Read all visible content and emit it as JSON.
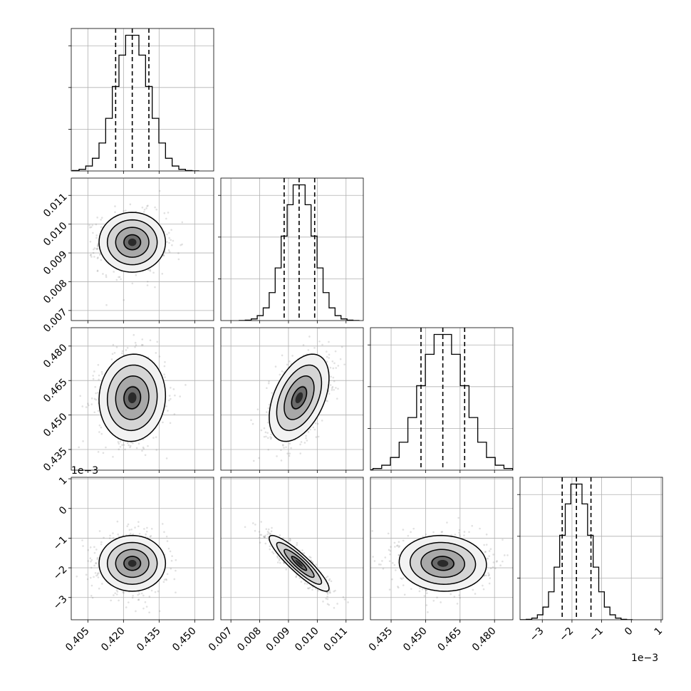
{
  "chart_data": {
    "type": "corner",
    "offset_text": "1e−3",
    "parameters": [
      {
        "range": [
          0.398,
          0.458
        ],
        "ticks": [
          0.405,
          0.42,
          0.435,
          0.45
        ],
        "tick_labels": [
          "0.405",
          "0.420",
          "0.435",
          "0.450"
        ],
        "mean": 0.4237,
        "sigma": 0.007,
        "quantiles": [
          0.4167,
          0.4237,
          0.4307
        ]
      },
      {
        "range": [
          0.00665,
          0.0116
        ],
        "ticks": [
          0.007,
          0.008,
          0.009,
          0.01,
          0.011
        ],
        "tick_labels": [
          "0.007",
          "0.008",
          "0.009",
          "0.010",
          "0.011"
        ],
        "mean": 0.00937,
        "sigma": 0.00052,
        "quantiles": [
          0.00885,
          0.00937,
          0.00991
        ]
      },
      {
        "range": [
          0.426,
          0.488
        ],
        "ticks": [
          0.435,
          0.45,
          0.465,
          0.48
        ],
        "tick_labels": [
          "0.435",
          "0.450",
          "0.465",
          "0.480"
        ],
        "mean": 0.4575,
        "sigma": 0.0095,
        "quantiles": [
          0.448,
          0.4575,
          0.467
        ]
      },
      {
        "range": [
          -3.75,
          1.05
        ],
        "ticks": [
          -3,
          -2,
          -1,
          0,
          1
        ],
        "tick_labels": [
          "−3",
          "−2",
          "−1",
          "0",
          "1"
        ],
        "y_ticks": [
          -3,
          -2,
          -1,
          0,
          1
        ],
        "y_tick_labels": [
          "−3",
          "−2",
          "−1",
          "0",
          "1"
        ],
        "mean": -1.85,
        "sigma": 0.47,
        "quantiles": [
          -2.33,
          -1.85,
          -1.36
        ],
        "scale": "1e-3"
      }
    ],
    "correlations": [
      [
        1,
        0,
        0.05,
        0
      ],
      [
        0,
        1,
        0.45,
        -0.9
      ],
      [
        0.05,
        0.45,
        1,
        -0.05
      ],
      [
        0,
        -0.9,
        -0.05,
        1
      ]
    ],
    "contour_levels_sigma": [
      0.5,
      1.0,
      1.5,
      2.0
    ],
    "grid": true
  }
}
